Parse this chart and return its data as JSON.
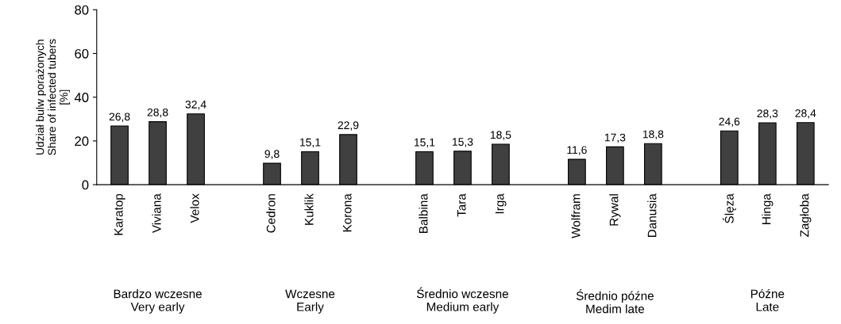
{
  "chart_data": {
    "type": "bar",
    "ylabel": "Udział bulw porażonych\nShare of infected tubers\n[%]",
    "categories": [
      "Karatop",
      "Viviana",
      "Velox",
      null,
      "Cedron",
      "Kuklik",
      "Korona",
      null,
      "Balbina",
      "Tara",
      "Irga",
      null,
      "Wolfram",
      "Rywal",
      "Danusia",
      null,
      "Ślęza",
      "Hinga",
      "Zagłoba"
    ],
    "values": [
      26.8,
      28.8,
      32.4,
      null,
      9.8,
      15.1,
      22.9,
      null,
      15.1,
      15.3,
      18.5,
      null,
      11.6,
      17.3,
      18.8,
      null,
      24.6,
      28.3,
      28.4
    ],
    "value_labels": [
      "26,8",
      "28,8",
      "32,4",
      null,
      "9,8",
      "15,1",
      "22,9",
      null,
      "15,1",
      "15,3",
      "18,5",
      null,
      "11,6",
      "17,3",
      "18,8",
      null,
      "24,6",
      "28,3",
      "28,4"
    ],
    "color": "#404040",
    "ylim": [
      0,
      80
    ],
    "yticks": [
      0,
      20,
      40,
      60,
      80
    ],
    "grid": false,
    "annotations": [
      "Bardzo wczesne\nVery early",
      "Wczesne\nEarly",
      "Średnio wczesne\nMedium early",
      "Średnio późne\nMedim late",
      "Późne\nLate"
    ]
  }
}
